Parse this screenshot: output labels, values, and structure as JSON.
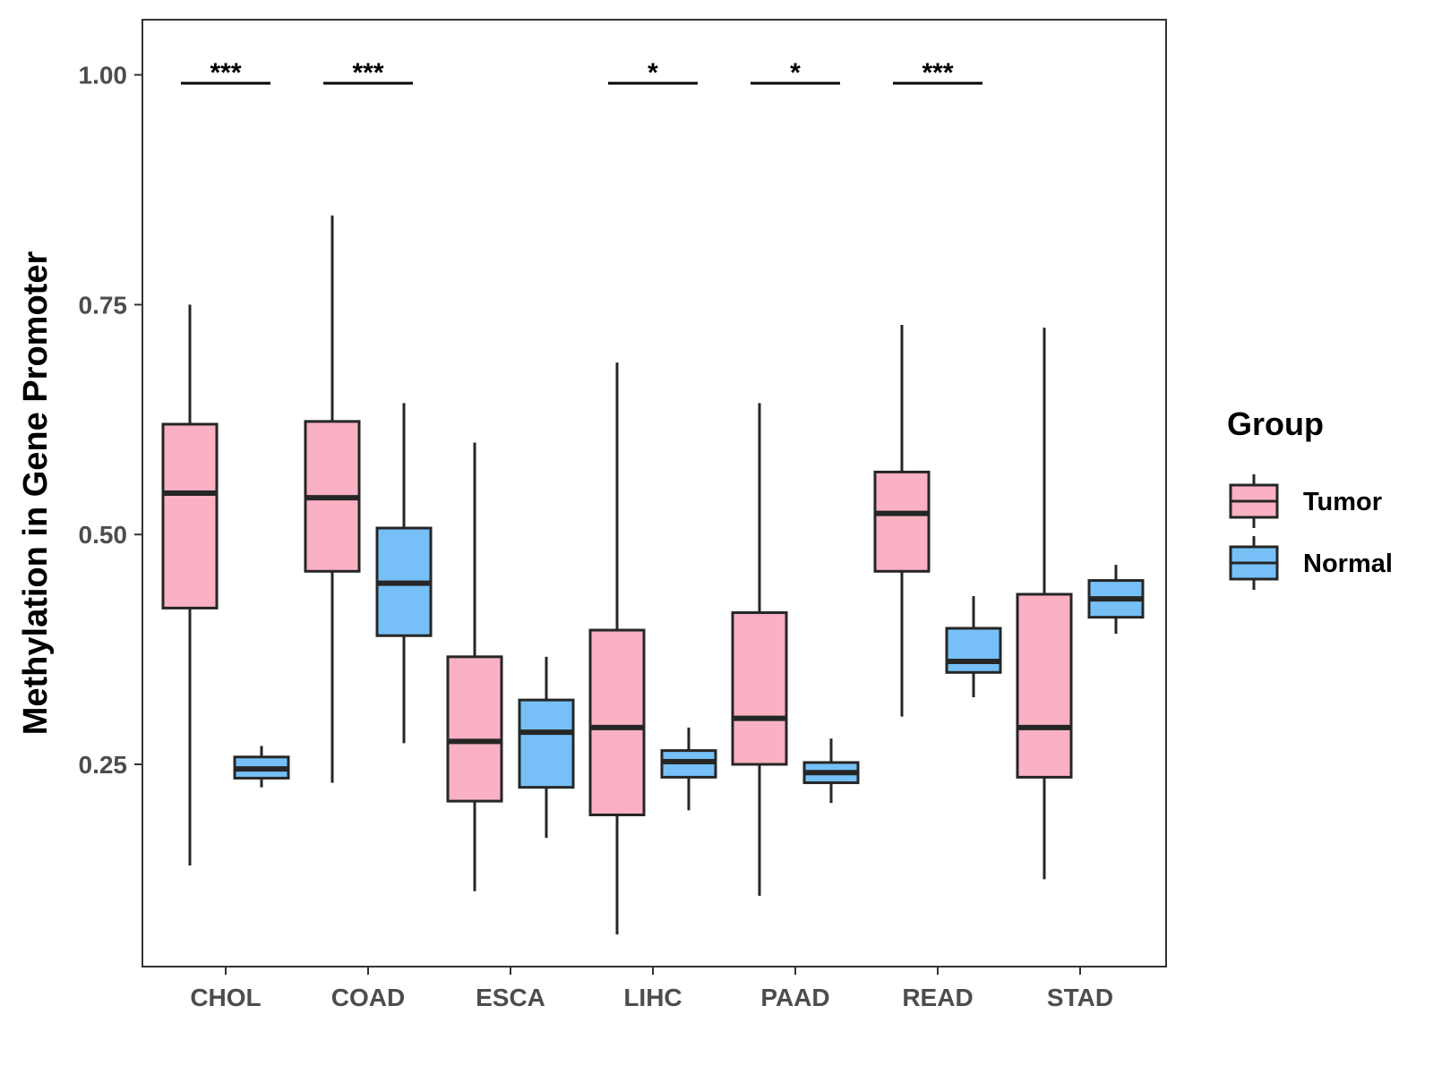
{
  "chart_data": {
    "type": "boxplot",
    "title": "",
    "xlabel": "",
    "ylabel": "Methylation in Gene Promoter",
    "ylim": [
      0.03,
      1.06
    ],
    "yticks": [
      0.25,
      0.5,
      0.75,
      1.0
    ],
    "ytick_labels": [
      "0.25",
      "0.50",
      "0.75",
      "1.00"
    ],
    "categories": [
      "CHOL",
      "COAD",
      "ESCA",
      "LIHC",
      "PAAD",
      "READ",
      "STAD"
    ],
    "grid": false,
    "legend": {
      "title": "Group",
      "position": "right",
      "entries": [
        "Tumor",
        "Normal"
      ]
    },
    "series": [
      {
        "name": "Tumor",
        "color": "#F9B1C3",
        "boxes": [
          {
            "min": 0.14,
            "q1": 0.42,
            "median": 0.545,
            "q3": 0.62,
            "max": 0.75
          },
          {
            "min": 0.23,
            "q1": 0.46,
            "median": 0.54,
            "q3": 0.623,
            "max": 0.847
          },
          {
            "min": 0.112,
            "q1": 0.21,
            "median": 0.275,
            "q3": 0.367,
            "max": 0.6
          },
          {
            "min": 0.065,
            "q1": 0.195,
            "median": 0.29,
            "q3": 0.396,
            "max": 0.687
          },
          {
            "min": 0.107,
            "q1": 0.25,
            "median": 0.3,
            "q3": 0.415,
            "max": 0.643
          },
          {
            "min": 0.302,
            "q1": 0.46,
            "median": 0.523,
            "q3": 0.568,
            "max": 0.728
          },
          {
            "min": 0.125,
            "q1": 0.236,
            "median": 0.29,
            "q3": 0.435,
            "max": 0.725
          }
        ]
      },
      {
        "name": "Normal",
        "color": "#76C0F7",
        "boxes": [
          {
            "min": 0.225,
            "q1": 0.235,
            "median": 0.245,
            "q3": 0.258,
            "max": 0.27
          },
          {
            "min": 0.273,
            "q1": 0.39,
            "median": 0.447,
            "q3": 0.507,
            "max": 0.643
          },
          {
            "min": 0.17,
            "q1": 0.225,
            "median": 0.285,
            "q3": 0.32,
            "max": 0.367
          },
          {
            "min": 0.2,
            "q1": 0.236,
            "median": 0.253,
            "q3": 0.265,
            "max": 0.29
          },
          {
            "min": 0.208,
            "q1": 0.23,
            "median": 0.241,
            "q3": 0.252,
            "max": 0.278
          },
          {
            "min": 0.323,
            "q1": 0.35,
            "median": 0.362,
            "q3": 0.398,
            "max": 0.433
          },
          {
            "min": 0.392,
            "q1": 0.41,
            "median": 0.43,
            "q3": 0.45,
            "max": 0.467
          }
        ]
      }
    ],
    "significance": [
      {
        "category": "CHOL",
        "label": "***"
      },
      {
        "category": "COAD",
        "label": "***"
      },
      {
        "category": "LIHC",
        "label": "*"
      },
      {
        "category": "PAAD",
        "label": "*"
      },
      {
        "category": "READ",
        "label": "***"
      }
    ]
  }
}
